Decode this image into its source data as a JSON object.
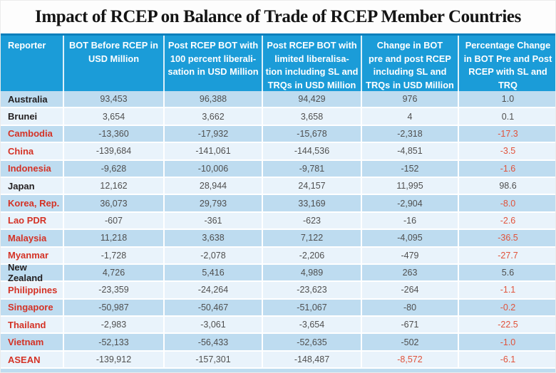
{
  "figure": {
    "title": "Impact of RCEP on Balance of Trade of RCEP Member Countries"
  },
  "colors": {
    "header_blue": "#1b9cd8",
    "header_top_border": "#0d7fbc",
    "row_alternate_dark": "#bedcf0",
    "row_alternate_light": "#e9f3fb",
    "country_name_red": "#d43225",
    "negative_value_red": "#e1523a",
    "number_gray": "#4f4f4f",
    "country_name_black": "#231f20"
  },
  "chart_data": {
    "type": "table",
    "title": "Impact of RCEP on Balance of Trade of RCEP Member Countries",
    "columns": [
      "Reporter",
      "BOT Before RCEP in\nUSD Million",
      "Post RCEP BOT with\n100 percent liberali-\nsation in USD Million",
      "Post RCEP BOT with\nlimited liberalisa-\ntion including SL and\nTRQs in USD Million",
      "Change in BOT\npre and post RCEP\nincluding SL and\nTRQs in USD Million",
      "Percentage Change\nin BOT Pre and Post\nRCEP with SL and\nTRQ"
    ],
    "rows": [
      {
        "reporter": "Australia",
        "reporter_red": false,
        "values": [
          "93,453",
          "96,388",
          "94,429",
          "976",
          "1.0"
        ],
        "red_value_indices": []
      },
      {
        "reporter": "Brunei",
        "reporter_red": false,
        "values": [
          "3,654",
          "3,662",
          "3,658",
          "4",
          "0.1"
        ],
        "red_value_indices": []
      },
      {
        "reporter": "Cambodia",
        "reporter_red": true,
        "values": [
          "-13,360",
          "-17,932",
          "-15,678",
          "-2,318",
          "-17.3"
        ],
        "red_value_indices": [
          4
        ]
      },
      {
        "reporter": "China",
        "reporter_red": true,
        "values": [
          "-139,684",
          "-141,061",
          "-144,536",
          "-4,851",
          "-3.5"
        ],
        "red_value_indices": [
          4
        ]
      },
      {
        "reporter": "Indonesia",
        "reporter_red": true,
        "values": [
          "-9,628",
          "-10,006",
          "-9,781",
          "-152",
          "-1.6"
        ],
        "red_value_indices": [
          4
        ]
      },
      {
        "reporter": "Japan",
        "reporter_red": false,
        "values": [
          "12,162",
          "28,944",
          "24,157",
          "11,995",
          "98.6"
        ],
        "red_value_indices": []
      },
      {
        "reporter": "Korea, Rep.",
        "reporter_red": true,
        "values": [
          "36,073",
          "29,793",
          "33,169",
          "-2,904",
          "-8.0"
        ],
        "red_value_indices": [
          4
        ]
      },
      {
        "reporter": "Lao PDR",
        "reporter_red": true,
        "values": [
          "-607",
          "-361",
          "-623",
          "-16",
          "-2.6"
        ],
        "red_value_indices": [
          4
        ]
      },
      {
        "reporter": "Malaysia",
        "reporter_red": true,
        "values": [
          "11,218",
          "3,638",
          "7,122",
          "-4,095",
          "-36.5"
        ],
        "red_value_indices": [
          4
        ]
      },
      {
        "reporter": "Myanmar",
        "reporter_red": true,
        "values": [
          "-1,728",
          "-2,078",
          "-2,206",
          "-479",
          "-27.7"
        ],
        "red_value_indices": [
          4
        ]
      },
      {
        "reporter": "New Zealand",
        "reporter_red": false,
        "values": [
          "4,726",
          "5,416",
          "4,989",
          "263",
          "5.6"
        ],
        "red_value_indices": []
      },
      {
        "reporter": "Philippines",
        "reporter_red": true,
        "values": [
          "-23,359",
          "-24,264",
          "-23,623",
          "-264",
          "-1.1"
        ],
        "red_value_indices": [
          4
        ]
      },
      {
        "reporter": "Singapore",
        "reporter_red": true,
        "values": [
          "-50,987",
          "-50,467",
          "-51,067",
          "-80",
          "-0.2"
        ],
        "red_value_indices": [
          4
        ]
      },
      {
        "reporter": "Thailand",
        "reporter_red": true,
        "values": [
          "-2,983",
          "-3,061",
          "-3,654",
          "-671",
          "-22.5"
        ],
        "red_value_indices": [
          4
        ]
      },
      {
        "reporter": "Vietnam",
        "reporter_red": true,
        "values": [
          "-52,133",
          "-56,433",
          "-52,635",
          "-502",
          "-1.0"
        ],
        "red_value_indices": [
          4
        ]
      },
      {
        "reporter": "ASEAN",
        "reporter_red": true,
        "values": [
          "-139,912",
          "-157,301",
          "-148,487",
          "-8,572",
          "-6.1"
        ],
        "red_value_indices": [
          3,
          4
        ]
      }
    ]
  }
}
